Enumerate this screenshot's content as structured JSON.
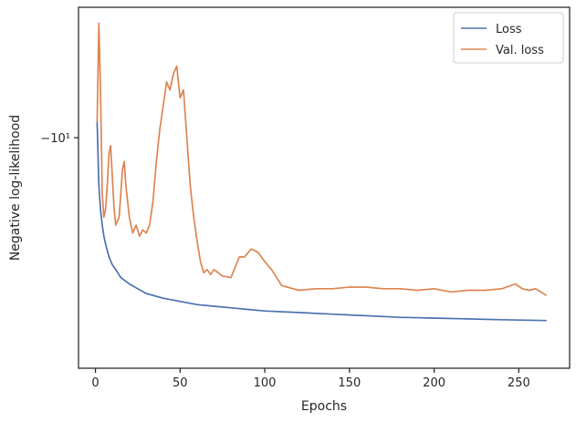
{
  "chart_data": {
    "type": "line",
    "xlabel": "Epochs",
    "ylabel": "Negative log-likelihood",
    "xlim": [
      -10,
      280
    ],
    "ylim": [
      -24.5,
      -1.8
    ],
    "y_scale": "symlog",
    "x_ticks": [
      0,
      50,
      100,
      150,
      200,
      250
    ],
    "y_ticks": [
      {
        "value": -10,
        "label": "−10¹"
      }
    ],
    "grid": false,
    "legend_position": "top-right",
    "series": [
      {
        "name": "Loss",
        "color": "#4c72b0",
        "x": [
          1,
          2,
          3,
          4,
          5,
          6,
          8,
          10,
          12,
          15,
          20,
          25,
          30,
          40,
          50,
          60,
          70,
          80,
          90,
          100,
          120,
          140,
          160,
          180,
          200,
          220,
          240,
          266
        ],
        "y": [
          -9.0,
          -13.0,
          -14.5,
          -15.5,
          -16.2,
          -16.7,
          -17.5,
          -18.0,
          -18.3,
          -18.8,
          -19.2,
          -19.5,
          -19.8,
          -20.1,
          -20.3,
          -20.5,
          -20.6,
          -20.7,
          -20.8,
          -20.9,
          -21.0,
          -21.1,
          -21.2,
          -21.3,
          -21.35,
          -21.4,
          -21.45,
          -21.5
        ]
      },
      {
        "name": "Val. loss",
        "color": "#dd8452",
        "x": [
          1,
          2,
          3,
          4,
          5,
          6,
          7,
          8,
          9,
          10,
          11,
          12,
          14,
          16,
          17,
          18,
          20,
          22,
          24,
          26,
          28,
          30,
          32,
          34,
          36,
          38,
          40,
          42,
          44,
          46,
          48,
          50,
          52,
          54,
          56,
          58,
          60,
          62,
          64,
          66,
          68,
          70,
          75,
          80,
          85,
          88,
          92,
          96,
          100,
          104,
          110,
          120,
          130,
          140,
          150,
          160,
          170,
          180,
          190,
          200,
          210,
          220,
          230,
          240,
          248,
          252,
          256,
          260,
          266
        ],
        "y": [
          -9.0,
          -2.8,
          -7.0,
          -13.5,
          -15.0,
          -14.5,
          -13.0,
          -11.0,
          -10.5,
          -12.5,
          -14.5,
          -15.5,
          -15.0,
          -12.0,
          -11.5,
          -13.0,
          -15.0,
          -16.0,
          -15.5,
          -16.2,
          -15.8,
          -16.0,
          -15.5,
          -14.0,
          -11.5,
          -9.5,
          -8.0,
          -6.5,
          -7.0,
          -6.0,
          -5.5,
          -7.5,
          -7.0,
          -10.0,
          -13.0,
          -15.0,
          -16.5,
          -17.8,
          -18.5,
          -18.3,
          -18.6,
          -18.3,
          -18.7,
          -18.8,
          -17.5,
          -17.5,
          -17.0,
          -17.2,
          -17.8,
          -18.3,
          -19.3,
          -19.6,
          -19.5,
          -19.5,
          -19.4,
          -19.4,
          -19.5,
          -19.5,
          -19.6,
          -19.5,
          -19.7,
          -19.6,
          -19.6,
          -19.5,
          -19.2,
          -19.5,
          -19.6,
          -19.5,
          -19.9
        ]
      }
    ]
  }
}
